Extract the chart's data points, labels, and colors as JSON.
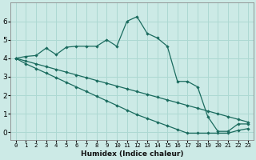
{
  "xlabel": "Humidex (Indice chaleur)",
  "x_ticks": [
    0,
    1,
    2,
    3,
    4,
    5,
    6,
    7,
    8,
    9,
    10,
    11,
    12,
    13,
    14,
    15,
    16,
    17,
    18,
    19,
    20,
    21,
    22,
    23
  ],
  "y_ticks": [
    0,
    1,
    2,
    3,
    4,
    5,
    6
  ],
  "xlim": [
    -0.5,
    23.5
  ],
  "ylim": [
    -0.4,
    7.0
  ],
  "bg_color": "#cceae6",
  "line_color": "#1a6b5e",
  "grid_color": "#add8d2",
  "line1_x": [
    0,
    1,
    2,
    3,
    4,
    5,
    6,
    7,
    8,
    9,
    10,
    11,
    12,
    13,
    14,
    15,
    16,
    17,
    18,
    19,
    20,
    21,
    22,
    23
  ],
  "line1_y": [
    4.0,
    4.1,
    4.15,
    4.55,
    4.2,
    4.6,
    4.65,
    4.65,
    4.65,
    5.0,
    4.65,
    6.0,
    6.25,
    5.35,
    5.1,
    4.65,
    2.75,
    2.75,
    2.45,
    0.85,
    0.05,
    0.05,
    0.45,
    0.45
  ],
  "line2_x": [
    0,
    1,
    2,
    3,
    4,
    5,
    6,
    7,
    8,
    9,
    10,
    11,
    12,
    13,
    14,
    15,
    16,
    17,
    18,
    19,
    20,
    21,
    22,
    23
  ],
  "line2_y": [
    4.0,
    3.85,
    3.7,
    3.55,
    3.4,
    3.25,
    3.1,
    2.95,
    2.8,
    2.65,
    2.5,
    2.35,
    2.2,
    2.05,
    1.9,
    1.75,
    1.6,
    1.45,
    1.3,
    1.15,
    1.0,
    0.85,
    0.7,
    0.55
  ],
  "line3_x": [
    0,
    1,
    2,
    3,
    4,
    5,
    6,
    7,
    8,
    9,
    10,
    11,
    12,
    13,
    14,
    15,
    16,
    17,
    18,
    19,
    20,
    21,
    22,
    23
  ],
  "line3_y": [
    4.0,
    3.7,
    3.45,
    3.2,
    2.95,
    2.7,
    2.45,
    2.2,
    1.95,
    1.7,
    1.45,
    1.2,
    0.95,
    0.75,
    0.55,
    0.35,
    0.15,
    -0.05,
    -0.05,
    -0.05,
    -0.05,
    -0.05,
    0.1,
    0.2
  ]
}
